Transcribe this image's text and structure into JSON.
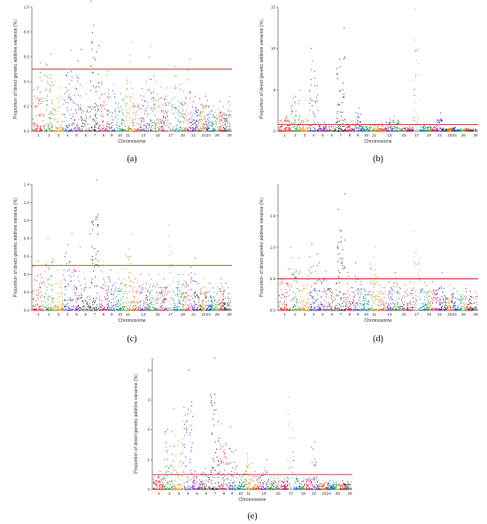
{
  "chart_data": [
    {
      "type": "scatter",
      "panel_label": "(a)",
      "xlabel": "Chromosome",
      "ylabel": "Proportion of direct genetic additive variance (%)",
      "ylim": [
        0,
        1.0
      ],
      "yticks": [
        "0.0",
        "0.2",
        "0.4",
        "0.6",
        "0.8",
        "1.0"
      ],
      "ytick_values": [
        0,
        0.2,
        0.4,
        0.6,
        0.8,
        1.0
      ],
      "threshold": 0.5,
      "tick_labels": [
        "1",
        "2",
        "3",
        "4",
        "5",
        "6",
        "7",
        "8",
        "9",
        "10",
        "11",
        "13",
        "15",
        "17",
        "19",
        "21",
        "23",
        "24",
        "26",
        "29"
      ],
      "peaks": [
        0.55,
        0.62,
        0.4,
        0.65,
        0.66,
        0.3,
        1.05,
        0.45,
        0.48,
        0.3,
        0.72,
        0.3,
        0.4,
        0.68,
        0.4,
        0.35,
        0.35,
        0.52,
        0.32,
        0.58,
        0.28,
        0.26,
        0.3,
        0.28,
        0.2,
        0.18,
        0.24,
        0.2,
        0.28
      ]
    },
    {
      "type": "scatter",
      "panel_label": "(b)",
      "xlabel": "Chromosome",
      "ylabel": "Proportion of direct genetic additive variance (%)",
      "ylim": [
        0,
        15
      ],
      "yticks": [
        "0",
        "5",
        "10",
        "15"
      ],
      "ytick_values": [
        0,
        5,
        10,
        15
      ],
      "threshold": 0.8,
      "tick_labels": [
        "1",
        "2",
        "3",
        "4",
        "5",
        "6",
        "7",
        "8",
        "9",
        "10",
        "11",
        "13",
        "15",
        "17",
        "19",
        "21",
        "23",
        "24",
        "26",
        "29"
      ],
      "peaks": [
        1.8,
        5.0,
        2.0,
        10.0,
        1.0,
        0.8,
        12.5,
        1.2,
        2.8,
        0.8,
        1.2,
        1.0,
        1.5,
        1.8,
        0.5,
        0.6,
        14.8,
        0.8,
        0.7,
        0.6,
        2.2,
        0.4,
        0.4,
        0.5,
        0.3,
        0.3,
        0.4,
        0.3,
        0.3
      ]
    },
    {
      "type": "scatter",
      "panel_label": "(c)",
      "xlabel": "Chromosome",
      "ylabel": "Proportion of direct genetic additive variance (%)",
      "ylim": [
        0,
        1.4
      ],
      "yticks": [
        "0.0",
        "0.2",
        "0.4",
        "0.6",
        "0.8",
        "1.0",
        "1.2",
        "1.4"
      ],
      "ytick_values": [
        0,
        0.2,
        0.4,
        0.6,
        0.8,
        1.0,
        1.2,
        1.4
      ],
      "threshold": 0.5,
      "tick_labels": [
        "1",
        "2",
        "3",
        "4",
        "5",
        "6",
        "7",
        "8",
        "9",
        "10",
        "11",
        "13",
        "15",
        "17",
        "19",
        "21",
        "23",
        "24",
        "26",
        "29"
      ],
      "peaks": [
        0.55,
        0.8,
        0.45,
        0.85,
        0.7,
        0.35,
        1.45,
        0.5,
        0.45,
        0.35,
        0.85,
        0.35,
        0.4,
        0.4,
        0.4,
        0.35,
        0.95,
        0.4,
        0.4,
        0.4,
        0.58,
        0.3,
        0.35,
        0.3,
        0.25,
        0.25,
        0.35,
        0.3,
        0.25
      ]
    },
    {
      "type": "scatter",
      "panel_label": "(d)",
      "xlabel": "Chromosome",
      "ylabel": "Proportion of direct genetic additive variance (%)",
      "ylim": [
        0,
        2.0
      ],
      "yticks": [
        "0.0",
        "0.5",
        "1.0",
        "1.5"
      ],
      "ytick_values": [
        0,
        0.5,
        1.0,
        1.5
      ],
      "threshold": 0.5,
      "tick_labels": [
        "1",
        "2",
        "3",
        "4",
        "5",
        "6",
        "7",
        "8",
        "9",
        "10",
        "11",
        "13",
        "15",
        "17",
        "19",
        "21",
        "23",
        "24",
        "26",
        "29"
      ],
      "peaks": [
        0.65,
        1.0,
        0.55,
        1.05,
        0.75,
        0.5,
        1.85,
        0.6,
        0.75,
        0.5,
        1.0,
        0.5,
        0.45,
        0.6,
        0.4,
        0.45,
        1.25,
        0.45,
        0.4,
        0.45,
        0.6,
        0.35,
        0.4,
        0.35,
        0.3,
        0.3,
        0.35,
        0.3,
        0.3
      ]
    },
    {
      "type": "scatter",
      "panel_label": "(e)",
      "xlabel": "Chromosome",
      "ylabel": "Proportion of direct genetic additive variance (%)",
      "ylim": [
        0,
        4.4
      ],
      "yticks": [
        "0",
        "1",
        "2",
        "3",
        "4"
      ],
      "ytick_values": [
        0,
        1,
        2,
        3,
        4
      ],
      "threshold": 0.5,
      "tick_labels": [
        "1",
        "2",
        "3",
        "4",
        "5",
        "6",
        "7",
        "8",
        "9",
        "10",
        "11",
        "13",
        "15",
        "17",
        "19",
        "21",
        "23",
        "24",
        "26",
        "29"
      ],
      "peaks": [
        0.6,
        2.7,
        2.3,
        4.0,
        0.6,
        0.7,
        4.4,
        2.2,
        2.1,
        0.8,
        1.2,
        0.6,
        1.0,
        0.5,
        0.4,
        0.4,
        3.1,
        0.5,
        0.4,
        0.5,
        1.6,
        0.3,
        0.3,
        0.3,
        0.25,
        0.25,
        0.3,
        0.25,
        0.25
      ]
    }
  ],
  "colors": [
    "#d7191c",
    "#2b8a1d",
    "#e08a0b",
    "#2f3fa6",
    "#7b1fa2",
    "#6d4c41",
    "#101010",
    "#c2185b",
    "#3949ab",
    "#00897b",
    "#9c8b00",
    "#e64a19",
    "#5e35b1",
    "#2e7d32",
    "#8d6e63",
    "#ad1457",
    "#9e9e9e",
    "#0277bd",
    "#558b2f",
    "#d81b60",
    "#6a1b9a",
    "#37474f",
    "#ef6c00",
    "#283593",
    "#00838f",
    "#7cb342",
    "#c62828",
    "#4e342e",
    "#757575"
  ],
  "threshold_color": "#c0392b"
}
